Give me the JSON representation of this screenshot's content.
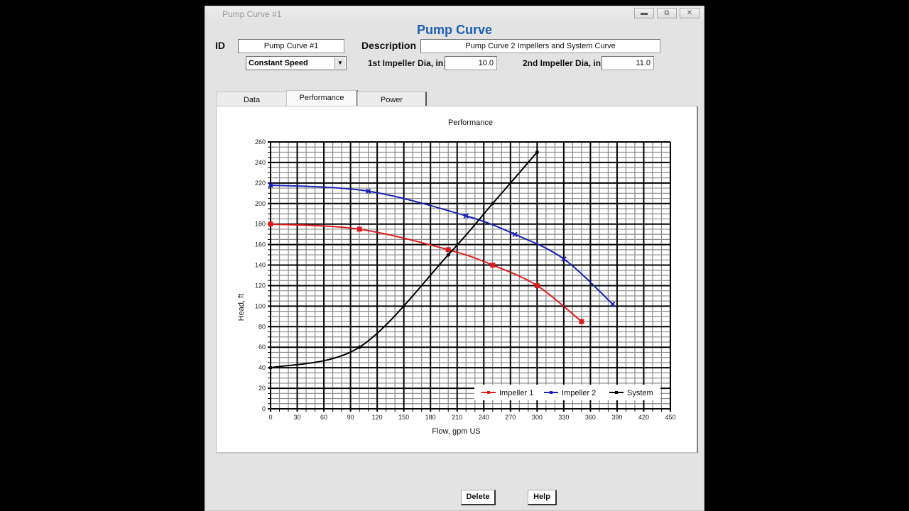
{
  "window": {
    "title": "Pump Curve #1",
    "controls": {
      "minimize": "minimize",
      "restore": "restore",
      "close": "close"
    }
  },
  "form": {
    "heading": "Pump Curve",
    "id_label": "ID",
    "id_value": "Pump Curve #1",
    "description_label": "Description",
    "description_value": "Pump Curve 2 Impellers and System Curve",
    "speed_mode": "Constant Speed",
    "impeller1_label": "1st Impeller Dia, in:",
    "impeller1_value": "10.0",
    "impeller2_label": "2nd Impeller Dia, in:",
    "impeller2_value": "11.0"
  },
  "tabs": [
    {
      "label": "Data",
      "active": false
    },
    {
      "label": "Performance",
      "active": true
    },
    {
      "label": "Power",
      "active": false
    }
  ],
  "buttons": {
    "delete": "Delete",
    "help": "Help"
  },
  "chart_data": {
    "type": "line",
    "title": "Performance",
    "xlabel": "Flow, gpm US",
    "ylabel": "Head, ft",
    "xlim": [
      0,
      450
    ],
    "ylim": [
      0,
      260
    ],
    "x_ticks": [
      0,
      30,
      60,
      90,
      120,
      150,
      180,
      210,
      240,
      270,
      300,
      330,
      360,
      390,
      420,
      450
    ],
    "y_ticks": [
      0,
      20,
      40,
      60,
      80,
      100,
      120,
      140,
      160,
      180,
      200,
      220,
      240,
      260
    ],
    "grid": true,
    "legend_position": "lower right inside",
    "series": [
      {
        "name": "Impeller 1",
        "color": "#e01b1b",
        "marker": "square",
        "x": [
          0,
          100,
          200,
          250,
          300,
          350
        ],
        "y": [
          180,
          175,
          155,
          140,
          120,
          85
        ]
      },
      {
        "name": "Impeller 2",
        "color": "#1b22b8",
        "marker": "x",
        "x": [
          0,
          110,
          220,
          275,
          330,
          385
        ],
        "y": [
          218,
          212,
          188,
          170,
          146,
          102
        ]
      },
      {
        "name": "System",
        "color": "#000000",
        "marker": "dot",
        "x": [
          0,
          100,
          200,
          250,
          300
        ],
        "y": [
          40,
          60,
          150,
          200,
          250
        ]
      }
    ]
  }
}
